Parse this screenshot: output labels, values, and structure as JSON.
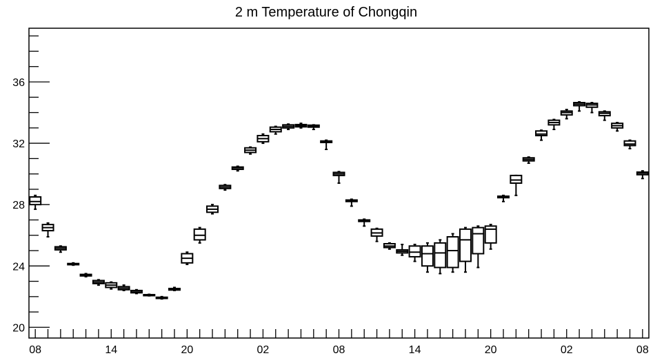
{
  "chart_data": {
    "type": "box",
    "title": "2 m Temperature of Chongqin",
    "xlabel": "",
    "ylabel": "",
    "ylim": [
      19.3,
      39.5
    ],
    "x_range": [
      -0.5,
      48.5
    ],
    "y_ticks": [
      20,
      24,
      28,
      32,
      36
    ],
    "y_minor_step": 1,
    "x_ticks": [
      {
        "x": 0,
        "label": "08"
      },
      {
        "x": 6,
        "label": "14"
      },
      {
        "x": 12,
        "label": "20"
      },
      {
        "x": 18,
        "label": "02"
      },
      {
        "x": 24,
        "label": "08"
      },
      {
        "x": 30,
        "label": "14"
      },
      {
        "x": 36,
        "label": "20"
      },
      {
        "x": 42,
        "label": "02"
      },
      {
        "x": 48,
        "label": "08"
      }
    ],
    "grid": false,
    "boxes": [
      {
        "x": 0,
        "min": 27.7,
        "q1": 28.0,
        "median": 28.2,
        "q3": 28.5,
        "max": 28.6
      },
      {
        "x": 1,
        "min": 25.9,
        "q1": 26.3,
        "median": 26.5,
        "q3": 26.7,
        "max": 26.8
      },
      {
        "x": 2,
        "min": 24.9,
        "q1": 25.05,
        "median": 25.15,
        "q3": 25.25,
        "max": 25.3
      },
      {
        "x": 3,
        "min": 24.05,
        "q1": 24.08,
        "median": 24.12,
        "q3": 24.16,
        "max": 24.2
      },
      {
        "x": 4,
        "min": 23.3,
        "q1": 23.35,
        "median": 23.4,
        "q3": 23.45,
        "max": 23.5
      },
      {
        "x": 5,
        "min": 22.75,
        "q1": 22.85,
        "median": 22.95,
        "q3": 23.05,
        "max": 23.1
      },
      {
        "x": 6,
        "min": 22.5,
        "q1": 22.6,
        "median": 22.75,
        "q3": 22.9,
        "max": 22.95
      },
      {
        "x": 7,
        "min": 22.4,
        "q1": 22.45,
        "median": 22.55,
        "q3": 22.65,
        "max": 22.75
      },
      {
        "x": 8,
        "min": 22.2,
        "q1": 22.25,
        "median": 22.3,
        "q3": 22.4,
        "max": 22.45
      },
      {
        "x": 9,
        "min": 22.05,
        "q1": 22.07,
        "median": 22.1,
        "q3": 22.13,
        "max": 22.15
      },
      {
        "x": 10,
        "min": 21.85,
        "q1": 21.88,
        "median": 21.92,
        "q3": 21.96,
        "max": 22.0
      },
      {
        "x": 11,
        "min": 22.4,
        "q1": 22.43,
        "median": 22.48,
        "q3": 22.53,
        "max": 22.6
      },
      {
        "x": 12,
        "min": 24.1,
        "q1": 24.2,
        "median": 24.5,
        "q3": 24.8,
        "max": 24.9
      },
      {
        "x": 13,
        "min": 25.5,
        "q1": 25.7,
        "median": 26.0,
        "q3": 26.4,
        "max": 26.5
      },
      {
        "x": 14,
        "min": 27.4,
        "q1": 27.5,
        "median": 27.7,
        "q3": 27.9,
        "max": 28.0
      },
      {
        "x": 15,
        "min": 28.95,
        "q1": 29.05,
        "median": 29.15,
        "q3": 29.25,
        "max": 29.3
      },
      {
        "x": 16,
        "min": 30.2,
        "q1": 30.3,
        "median": 30.4,
        "q3": 30.45,
        "max": 30.5
      },
      {
        "x": 17,
        "min": 31.3,
        "q1": 31.4,
        "median": 31.55,
        "q3": 31.7,
        "max": 31.75
      },
      {
        "x": 18,
        "min": 32.0,
        "q1": 32.1,
        "median": 32.3,
        "q3": 32.5,
        "max": 32.6
      },
      {
        "x": 19,
        "min": 32.6,
        "q1": 32.75,
        "median": 32.9,
        "q3": 33.05,
        "max": 33.1
      },
      {
        "x": 20,
        "min": 32.9,
        "q1": 33.0,
        "median": 33.1,
        "q3": 33.2,
        "max": 33.25
      },
      {
        "x": 21,
        "min": 33.0,
        "q1": 33.07,
        "median": 33.15,
        "q3": 33.22,
        "max": 33.3
      },
      {
        "x": 22,
        "min": 32.9,
        "q1": 33.05,
        "median": 33.12,
        "q3": 33.18,
        "max": 33.2
      },
      {
        "x": 23,
        "min": 31.6,
        "q1": 32.05,
        "median": 32.1,
        "q3": 32.15,
        "max": 32.2
      },
      {
        "x": 24,
        "min": 29.4,
        "q1": 29.9,
        "median": 30.0,
        "q3": 30.1,
        "max": 30.15
      },
      {
        "x": 25,
        "min": 27.9,
        "q1": 28.2,
        "median": 28.25,
        "q3": 28.3,
        "max": 28.35
      },
      {
        "x": 26,
        "min": 26.6,
        "q1": 26.9,
        "median": 26.95,
        "q3": 27.0,
        "max": 27.05
      },
      {
        "x": 27,
        "min": 25.6,
        "q1": 25.95,
        "median": 26.15,
        "q3": 26.4,
        "max": 26.45
      },
      {
        "x": 28,
        "min": 25.1,
        "q1": 25.2,
        "median": 25.3,
        "q3": 25.45,
        "max": 25.5
      },
      {
        "x": 29,
        "min": 24.7,
        "q1": 24.85,
        "median": 24.95,
        "q3": 25.05,
        "max": 25.4
      },
      {
        "x": 30,
        "min": 24.3,
        "q1": 24.6,
        "median": 24.9,
        "q3": 25.3,
        "max": 25.4
      },
      {
        "x": 31,
        "min": 23.6,
        "q1": 24.0,
        "median": 24.8,
        "q3": 25.3,
        "max": 25.5
      },
      {
        "x": 32,
        "min": 23.5,
        "q1": 23.9,
        "median": 24.85,
        "q3": 25.5,
        "max": 25.7
      },
      {
        "x": 33,
        "min": 23.6,
        "q1": 23.9,
        "median": 25.0,
        "q3": 25.9,
        "max": 26.1
      },
      {
        "x": 34,
        "min": 23.6,
        "q1": 24.3,
        "median": 25.7,
        "q3": 26.4,
        "max": 26.5
      },
      {
        "x": 35,
        "min": 23.9,
        "q1": 24.8,
        "median": 26.1,
        "q3": 26.5,
        "max": 26.6
      },
      {
        "x": 36,
        "min": 25.1,
        "q1": 25.5,
        "median": 26.4,
        "q3": 26.6,
        "max": 26.7
      },
      {
        "x": 37,
        "min": 28.2,
        "q1": 28.45,
        "median": 28.5,
        "q3": 28.55,
        "max": 28.6
      },
      {
        "x": 38,
        "min": 28.6,
        "q1": 29.4,
        "median": 29.6,
        "q3": 29.9,
        "max": 29.9
      },
      {
        "x": 39,
        "min": 30.7,
        "q1": 30.85,
        "median": 30.95,
        "q3": 31.05,
        "max": 31.1
      },
      {
        "x": 40,
        "min": 32.2,
        "q1": 32.5,
        "median": 32.6,
        "q3": 32.8,
        "max": 32.85
      },
      {
        "x": 41,
        "min": 32.9,
        "q1": 33.2,
        "median": 33.35,
        "q3": 33.5,
        "max": 33.55
      },
      {
        "x": 42,
        "min": 33.6,
        "q1": 33.85,
        "median": 34.0,
        "q3": 34.1,
        "max": 34.2
      },
      {
        "x": 43,
        "min": 34.1,
        "q1": 34.45,
        "median": 34.55,
        "q3": 34.65,
        "max": 34.7
      },
      {
        "x": 44,
        "min": 34.0,
        "q1": 34.35,
        "median": 34.5,
        "q3": 34.6,
        "max": 34.65
      },
      {
        "x": 45,
        "min": 33.5,
        "q1": 33.8,
        "median": 33.95,
        "q3": 34.05,
        "max": 34.1
      },
      {
        "x": 46,
        "min": 32.8,
        "q1": 33.0,
        "median": 33.15,
        "q3": 33.3,
        "max": 33.35
      },
      {
        "x": 47,
        "min": 31.65,
        "q1": 31.85,
        "median": 31.95,
        "q3": 32.15,
        "max": 32.2
      },
      {
        "x": 48,
        "min": 29.7,
        "q1": 29.95,
        "median": 30.05,
        "q3": 30.12,
        "max": 30.2
      }
    ]
  },
  "colors": {
    "box": "#000000",
    "axis": "#000000",
    "background": "#ffffff"
  }
}
